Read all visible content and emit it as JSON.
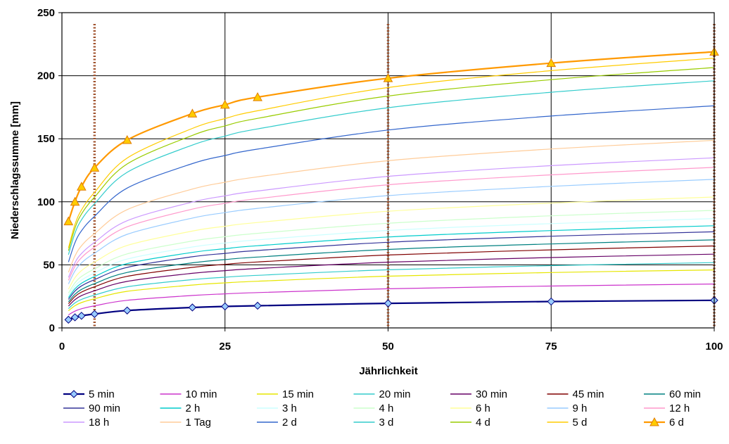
{
  "chart_data": {
    "type": "line",
    "title": "",
    "xlabel": "Jährlichkeit",
    "ylabel": "Niederschlagssumme [mm]",
    "xlim": [
      0,
      100
    ],
    "ylim": [
      0,
      250
    ],
    "x_ticks": [
      "0",
      "25",
      "50",
      "75",
      "100"
    ],
    "y_ticks": [
      "0",
      "50",
      "100",
      "150",
      "200",
      "250"
    ],
    "grid": true,
    "legend_position": "bottom",
    "x": [
      1,
      2,
      3,
      5,
      10,
      20,
      25,
      30,
      50,
      75,
      100
    ],
    "reference_lines_x": [
      5,
      50,
      100
    ],
    "series": [
      {
        "name": "5 min",
        "color": "#000080",
        "marker": "diamond",
        "values": [
          6.5,
          8.4,
          9.6,
          11.0,
          13.8,
          16.2,
          17.0,
          17.6,
          19.5,
          20.9,
          21.9
        ]
      },
      {
        "name": "10 min",
        "color": "#cc33cc",
        "values": [
          10.3,
          13.3,
          15.2,
          17.5,
          21.9,
          25.7,
          27.0,
          28.0,
          31.0,
          33.2,
          34.8
        ]
      },
      {
        "name": "15 min",
        "color": "#e6e600",
        "values": [
          13.6,
          17.6,
          20.1,
          23.1,
          29.0,
          34.0,
          35.7,
          37.0,
          41.0,
          43.9,
          46.0
        ]
      },
      {
        "name": "20 min",
        "color": "#33cccc",
        "values": [
          15.3,
          19.8,
          22.6,
          26.0,
          32.6,
          38.3,
          40.2,
          41.7,
          46.1,
          49.4,
          51.8
        ]
      },
      {
        "name": "30 min",
        "color": "#660066",
        "values": [
          17.3,
          22.4,
          25.6,
          29.4,
          36.9,
          43.3,
          45.4,
          47.1,
          52.1,
          55.8,
          58.5
        ]
      },
      {
        "name": "45 min",
        "color": "#800000",
        "values": [
          19.2,
          24.9,
          28.4,
          32.6,
          40.9,
          48.0,
          50.4,
          52.3,
          57.8,
          61.9,
          65.0
        ]
      },
      {
        "name": "60 min",
        "color": "#008080",
        "values": [
          20.7,
          26.7,
          30.5,
          35.1,
          44.0,
          51.6,
          54.2,
          56.2,
          62.2,
          66.6,
          69.8
        ]
      },
      {
        "name": "90 min",
        "color": "#333399",
        "values": [
          22.6,
          29.2,
          33.3,
          38.3,
          48.0,
          56.4,
          59.1,
          61.4,
          67.9,
          72.7,
          76.2
        ]
      },
      {
        "name": "2 h",
        "color": "#00cccc",
        "values": [
          24.0,
          31.0,
          35.4,
          40.7,
          51.0,
          59.9,
          62.8,
          65.2,
          72.1,
          77.2,
          81.0
        ]
      },
      {
        "name": "3 h",
        "color": "#ccffff",
        "values": [
          25.7,
          33.2,
          37.9,
          43.6,
          54.6,
          64.2,
          67.3,
          69.8,
          77.3,
          82.7,
          86.7
        ]
      },
      {
        "name": "4 h",
        "color": "#ccffcc",
        "values": [
          27.6,
          35.7,
          40.8,
          46.8,
          58.7,
          68.9,
          72.3,
          75.0,
          83.0,
          88.9,
          93.2
        ]
      },
      {
        "name": "6 h",
        "color": "#ffff99",
        "values": [
          30.7,
          39.8,
          45.4,
          52.2,
          65.4,
          76.8,
          80.6,
          83.6,
          92.5,
          99.0,
          103.8
        ]
      },
      {
        "name": "9 h",
        "color": "#99ccff",
        "values": [
          34.9,
          45.1,
          51.5,
          59.2,
          74.2,
          87.1,
          91.4,
          94.8,
          104.9,
          112.3,
          117.8
        ]
      },
      {
        "name": "12 h",
        "color": "#ff99cc",
        "values": [
          37.7,
          48.8,
          55.7,
          64.0,
          80.2,
          94.2,
          98.8,
          102.5,
          113.5,
          121.4,
          127.3
        ]
      },
      {
        "name": "18 h",
        "color": "#cc99ff",
        "values": [
          40.0,
          51.7,
          59.0,
          67.8,
          85.0,
          99.8,
          104.7,
          108.6,
          120.2,
          128.7,
          134.9
        ]
      },
      {
        "name": "1 Tag",
        "color": "#ffcc99",
        "values": [
          44.1,
          57.0,
          65.1,
          74.8,
          93.8,
          110.1,
          115.5,
          119.8,
          132.6,
          141.9,
          148.8
        ]
      },
      {
        "name": "2 d",
        "color": "#3366cc",
        "values": [
          52.2,
          67.5,
          77.0,
          88.5,
          110.9,
          130.3,
          136.7,
          141.8,
          156.9,
          168.0,
          176.1
        ]
      },
      {
        "name": "3 d",
        "color": "#33cccc",
        "values": [
          58.1,
          75.1,
          85.7,
          98.5,
          123.4,
          145.0,
          152.1,
          157.8,
          174.6,
          186.9,
          196.0
        ]
      },
      {
        "name": "4 d",
        "color": "#99cc00",
        "values": [
          61.2,
          79.1,
          90.3,
          103.7,
          130.0,
          152.7,
          160.2,
          166.2,
          183.9,
          196.9,
          206.5
        ]
      },
      {
        "name": "5 d",
        "color": "#ffcc00",
        "values": [
          63.4,
          82.0,
          93.5,
          107.5,
          134.7,
          158.2,
          166.0,
          172.2,
          190.6,
          204.0,
          213.9
        ]
      },
      {
        "name": "6 d",
        "color": "#ff9900",
        "marker": "triangle",
        "values": [
          84.5,
          100.0,
          112.0,
          127.0,
          149.0,
          170.0,
          177.0,
          183.0,
          198.0,
          210.0,
          219.0
        ]
      }
    ]
  }
}
